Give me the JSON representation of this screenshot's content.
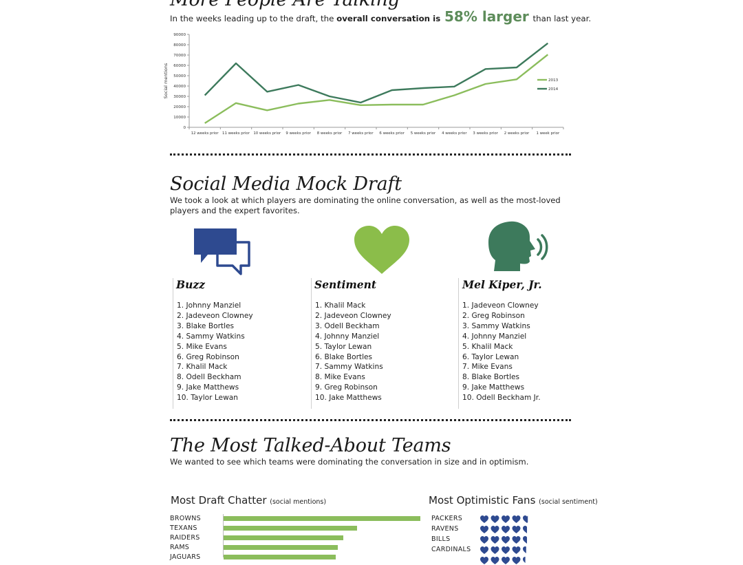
{
  "talking": {
    "title": "More People Are Talking",
    "intro_pre": "In the weeks leading up to the draft, the",
    "intro_bold": "overall conversation is",
    "intro_big": "58% larger",
    "intro_post": "than last year."
  },
  "chart_data": {
    "type": "line",
    "ylabel": "Social mentions",
    "xlabel": "",
    "ylim": [
      0,
      90000
    ],
    "yticks": [
      0,
      10000,
      20000,
      30000,
      40000,
      50000,
      60000,
      70000,
      80000,
      90000
    ],
    "categories": [
      "12 weeks prior",
      "11 weeks prior",
      "10 weeks prior",
      "9 weeks prior",
      "8 weeks prior",
      "7 weeks prior",
      "6 weeks prior",
      "5 weeks prior",
      "4 weeks prior",
      "3 weeks prior",
      "2 weeks prior",
      "1 week prior"
    ],
    "legend_position": "right",
    "series": [
      {
        "name": "2013",
        "color": "#8bbd5c",
        "values": [
          4000,
          23500,
          16500,
          23000,
          26500,
          21500,
          22000,
          22000,
          31000,
          42000,
          46500,
          70500
        ]
      },
      {
        "name": "2014",
        "color": "#3d7a5c",
        "values": [
          31000,
          62000,
          34500,
          41000,
          30000,
          24000,
          36000,
          38000,
          39500,
          56500,
          58000,
          81500
        ]
      }
    ]
  },
  "mock": {
    "title": "Social Media Mock Draft",
    "intro": "We took a look at which players are dominating the online conversation, as well as the most-loved players and the expert favorites.",
    "icons": {
      "buzz": "chat-bubbles-icon",
      "sentiment": "heart-icon",
      "kiper": "speaking-head-icon"
    },
    "colors": {
      "buzz": "#2e4a90",
      "sentiment": "#8bbd4a",
      "kiper": "#3d7a5c"
    },
    "columns": [
      {
        "title": "Buzz",
        "items": [
          "1. Johnny Manziel",
          "2. Jadeveon Clowney",
          "3. Blake Bortles",
          "4. Sammy Watkins",
          "5. Mike Evans",
          "6. Greg Robinson",
          "7. Khalil Mack",
          "8. Odell Beckham",
          "9. Jake Matthews",
          "10. Taylor Lewan"
        ]
      },
      {
        "title": "Sentiment",
        "items": [
          "1. Khalil Mack",
          "2. Jadeveon Clowney",
          "3. Odell Beckham",
          "4. Johnny Manziel",
          "5. Taylor Lewan",
          "6. Blake Bortles",
          "7. Sammy Watkins",
          "8. Mike Evans",
          "9. Greg Robinson",
          "10. Jake Matthews"
        ]
      },
      {
        "title": "Mel Kiper, Jr.",
        "items": [
          "1. Jadeveon Clowney",
          "2. Greg Robinson",
          "3. Sammy Watkins",
          "4. Johnny Manziel",
          "5. Khalil Mack",
          "6. Taylor Lewan",
          "7. Mike Evans",
          "8. Blake Bortles",
          "9. Jake Matthews",
          "10. Odell Beckham Jr."
        ]
      }
    ]
  },
  "teams": {
    "title": "The Most Talked-About Teams",
    "intro": "We wanted to see which teams were dominating the conversation in size and in optimism.",
    "chatter": {
      "title": "Most Draft Chatter",
      "sub": "(social mentions)",
      "bar_color": "#8bbd5c",
      "bars": [
        {
          "team": "BROWNS",
          "value": 1.0
        },
        {
          "team": "TEXANS",
          "value": 0.68
        },
        {
          "team": "RAIDERS",
          "value": 0.61
        },
        {
          "team": "RAMS",
          "value": 0.58
        },
        {
          "team": "JAGUARS",
          "value": 0.57
        }
      ]
    },
    "fans": {
      "title": "Most Optimistic Fans",
      "sub": "(social sentiment)",
      "heart_color": "#2e4a90",
      "max_hearts": 5,
      "rows": [
        {
          "team": "PACKERS",
          "hearts": 4.6
        },
        {
          "team": "RAVENS",
          "hearts": 4.5
        },
        {
          "team": "BILLS",
          "hearts": 4.5
        },
        {
          "team": "CARDINALS",
          "hearts": 4.4
        },
        {
          "team": "",
          "hearts": 4.3
        }
      ]
    }
  }
}
